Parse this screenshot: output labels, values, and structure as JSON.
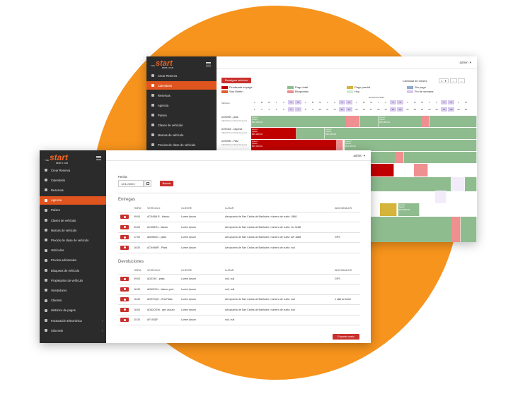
{
  "brand": {
    "the": "THE",
    "name": "start",
    "tag": "RENT A CAR"
  },
  "user": {
    "name": "admin"
  },
  "back": {
    "sidebar": [
      {
        "label": "Crear Reserva",
        "active": false
      },
      {
        "label": "Calendario",
        "active": true
      },
      {
        "label": "Reservas",
        "active": false
      },
      {
        "label": "Agencia",
        "active": false
      },
      {
        "label": "Países",
        "active": false
      },
      {
        "label": "Clases de vehículo",
        "active": false
      },
      {
        "label": "Marcas de vehículo",
        "active": false
      },
      {
        "label": "Precios de clase de vehículo",
        "active": false
      }
    ],
    "assign_button": "Reasignar vehículo",
    "months_label": "Cantidad de meses",
    "months_value": "1",
    "legend": [
      {
        "label": "Finalizada impaga",
        "color": "#c00000"
      },
      {
        "label": "Pago total",
        "color": "#8fbc8f"
      },
      {
        "label": "Pago parcial",
        "color": "#d4b43a"
      },
      {
        "label": "Sin pago",
        "color": "#8fa9cf"
      },
      {
        "label": "San Martín",
        "color": "#e06030"
      },
      {
        "label": "Bloqueado",
        "color": "#ef8f8f"
      },
      {
        "label": "Hoy",
        "color": "#d8e8d8"
      },
      {
        "label": "Fin de semana",
        "color": "#d8c9ef"
      }
    ],
    "month_title": "Noviembre 2021",
    "vehicle_col": "Vehículo",
    "days": [
      "L",
      "M",
      "M",
      "J",
      "V",
      "S",
      "D",
      "L",
      "M",
      "M",
      "J",
      "V",
      "S",
      "D",
      "L",
      "M",
      "M",
      "J",
      "V",
      "S",
      "D",
      "L",
      "M",
      "M",
      "J",
      "V",
      "S",
      "D",
      "L",
      "M"
    ],
    "dates": [
      "1",
      "2",
      "3",
      "4",
      "5",
      "6",
      "7",
      "8",
      "9",
      "10",
      "11",
      "12",
      "13",
      "14",
      "15",
      "16",
      "17",
      "18",
      "19",
      "20",
      "21",
      "22",
      "23",
      "24",
      "25",
      "26",
      "27",
      "28",
      "29",
      "30"
    ],
    "vehicles": [
      {
        "name": "AC9494R - plata",
        "sub": "SEDAN Beaut Retail Advanced"
      },
      {
        "name": "AC9046JI - turquesa",
        "sub": "SEDAN Beaut Retail Advanced"
      },
      {
        "name": "AC9490N - Plata",
        "sub": "SEDAN Beaut Retail Advanced"
      }
    ],
    "block_text": {
      "l1": "Lorem",
      "l2": "Ipsum",
      "price": "$35.000,00"
    }
  },
  "front": {
    "sidebar": [
      {
        "label": "Crear Reserva",
        "active": false,
        "chev": false
      },
      {
        "label": "Calendario",
        "active": false,
        "chev": false
      },
      {
        "label": "Reservas",
        "active": false,
        "chev": false
      },
      {
        "label": "Agencia",
        "active": true,
        "chev": false
      },
      {
        "label": "Países",
        "active": false,
        "chev": false
      },
      {
        "label": "Clases de vehículo",
        "active": false,
        "chev": false
      },
      {
        "label": "Marcas de vehículo",
        "active": false,
        "chev": false
      },
      {
        "label": "Precios de clase de vehículo",
        "active": false,
        "chev": false
      },
      {
        "label": "Vehículos",
        "active": false,
        "chev": false
      },
      {
        "label": "Precios adicionales",
        "active": false,
        "chev": false
      },
      {
        "label": "Bloqueos de vehículo",
        "active": false,
        "chev": false
      },
      {
        "label": "Propietarios de vehículo",
        "active": false,
        "chev": false
      },
      {
        "label": "Vendedores",
        "active": false,
        "chev": false
      },
      {
        "label": "Clientes",
        "active": false,
        "chev": false
      },
      {
        "label": "Histórico de pagos",
        "active": false,
        "chev": false
      },
      {
        "label": "Facturación Electrónica",
        "active": false,
        "chev": true
      },
      {
        "label": "Sitio web",
        "active": false,
        "chev": true
      }
    ],
    "fecha_label": "Fecha",
    "fecha_value": "12/11/2022",
    "search_button": "Buscar",
    "entregas_title": "Entregas",
    "devoluciones_title": "Devoluciones",
    "columns": {
      "hora": "HORA",
      "vehiculo": "VEHÍCULO",
      "cliente": "CLIENTE",
      "lugar": "LUGAR",
      "adicionales": "ADICIONALES"
    },
    "entregas": [
      {
        "hora": "09:00",
        "vehiculo": "AC9456LR - blanco",
        "cliente": "Lorem Ipsum",
        "lugar": "Aeropuerto de San Carlos de Bariloche, número de vuelo: 1868",
        "adicionales": ""
      },
      {
        "hora": "09:00",
        "vehiculo": "AC3087N - blanco",
        "cliente": "Lorem Ipsum",
        "lugar": "Aeropuerto de San Carlos de Bariloche, número de vuelo: 1U 3188",
        "adicionales": ""
      },
      {
        "hora": "17:00",
        "vehiculo": "AB0983O - plata",
        "cliente": "Lorem Ipsum",
        "lugar": "Aeropuerto de San Carlos de Bariloche, número de vuelo: AR 1688",
        "adicionales": "GPS"
      },
      {
        "hora": "18:30",
        "vehiculo": "AC9496IR - Plata",
        "cliente": "Lorem Ipsum",
        "lugar": "Aeropuerto de San Carlos de Bariloche, número de vuelo: null",
        "adicionales": ""
      }
    ],
    "devoluciones": [
      {
        "hora": "09:00",
        "vehiculo": "AD07AV - plata",
        "cliente": "Lorem Ipsum",
        "lugar": "null, null",
        "adicionales": "GPS"
      },
      {
        "hora": "16:30",
        "vehiculo": "AD62OGL - blanco perl.",
        "cliente": "Lorem Ipsum",
        "lugar": "null, null",
        "adicionales": ""
      },
      {
        "hora": "16:30",
        "vehiculo": "AD972QO - Gris Plata",
        "cliente": "Lorem Ipsum",
        "lugar": "Aeropuerto de San Carlos de Bariloche, número de vuelo: null",
        "adicionales": "1 silla de bebé"
      },
      {
        "hora": "18:00",
        "vehiculo": "AD62OGW - gris oscuro",
        "cliente": "Lorem Ipsum",
        "lugar": "Aeropuerto de San Carlos de Bariloche, número de vuelo: null",
        "adicionales": ""
      },
      {
        "hora": "20:30",
        "vehiculo": "AF193DF",
        "cliente": "Lorem Ipsum",
        "lugar": "null, null",
        "adicionales": ""
      }
    ],
    "bottom_button": "Exportar vuelo"
  },
  "colors": {
    "orange": "#f7941d",
    "sidebar": "#2b2b2b",
    "accent": "#e0541f",
    "red": "#c9302c"
  }
}
